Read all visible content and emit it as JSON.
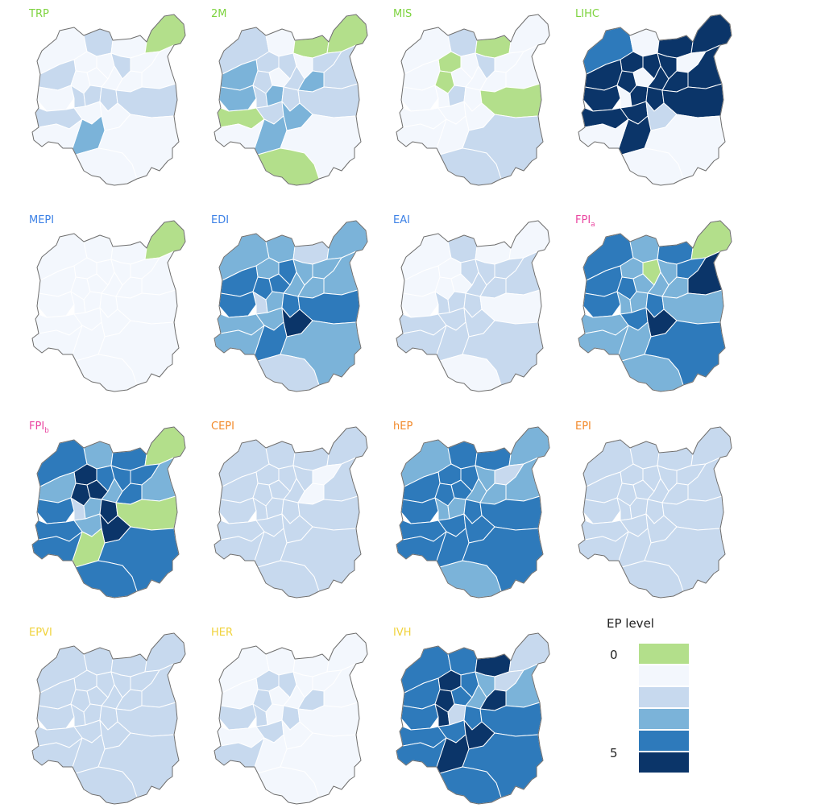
{
  "palette": {
    "level_0": "#b3df8b",
    "level_1": "#f3f7fd",
    "level_2": "#c7d9ee",
    "level_3": "#7bb3d9",
    "level_4": "#2e7abb",
    "level_5": "#0b3569"
  },
  "label_colors": {
    "green": "#7dd33e",
    "blue": "#3e82e6",
    "pink": "#ea47a1",
    "orange": "#f28a2b",
    "yellow": "#f0d23a"
  },
  "panels": [
    {
      "name": "TRP",
      "subscript": "",
      "label_color": "green",
      "levels": [
        1,
        2,
        1,
        1,
        0,
        2,
        1,
        1,
        2,
        1,
        1,
        1,
        1,
        2,
        2,
        2,
        1,
        1,
        2,
        2,
        1,
        1,
        3,
        1,
        1,
        1
      ]
    },
    {
      "name": "2M",
      "subscript": "",
      "label_color": "green",
      "levels": [
        2,
        1,
        0,
        2,
        0,
        3,
        2,
        2,
        1,
        2,
        1,
        2,
        3,
        2,
        3,
        2,
        3,
        2,
        0,
        2,
        2,
        3,
        3,
        1,
        1,
        0
      ]
    },
    {
      "name": "MIS",
      "subscript": "",
      "label_color": "green",
      "levels": [
        1,
        2,
        0,
        0,
        1,
        1,
        0,
        1,
        2,
        1,
        1,
        1,
        1,
        1,
        2,
        1,
        1,
        1,
        1,
        0,
        1,
        1,
        1,
        1,
        2,
        2
      ]
    },
    {
      "name": "LIHC",
      "subscript": "",
      "label_color": "green",
      "levels": [
        4,
        1,
        5,
        5,
        5,
        5,
        5,
        5,
        5,
        1,
        1,
        5,
        5,
        1,
        5,
        5,
        5,
        5,
        5,
        5,
        5,
        2,
        5,
        1,
        1,
        1
      ]
    },
    {
      "name": "MEPI",
      "subscript": "",
      "label_color": "blue",
      "levels": [
        1,
        1,
        1,
        1,
        0,
        1,
        1,
        1,
        1,
        1,
        1,
        1,
        1,
        1,
        1,
        1,
        1,
        1,
        1,
        1,
        1,
        1,
        1,
        1,
        1,
        1
      ]
    },
    {
      "name": "EDI",
      "subscript": "",
      "label_color": "blue",
      "levels": [
        3,
        3,
        2,
        3,
        3,
        4,
        4,
        4,
        3,
        3,
        4,
        3,
        4,
        2,
        3,
        4,
        3,
        3,
        3,
        4,
        3,
        5,
        4,
        3,
        3,
        2
      ]
    },
    {
      "name": "EAI",
      "subscript": "",
      "label_color": "blue",
      "levels": [
        1,
        2,
        1,
        1,
        1,
        1,
        1,
        2,
        2,
        2,
        1,
        2,
        1,
        2,
        2,
        2,
        2,
        2,
        2,
        1,
        2,
        2,
        2,
        2,
        2,
        1
      ]
    },
    {
      "name": "FPI",
      "subscript": "a",
      "label_color": "pink",
      "levels": [
        4,
        3,
        4,
        3,
        0,
        4,
        4,
        0,
        3,
        4,
        3,
        3,
        4,
        3,
        3,
        4,
        3,
        5,
        3,
        3,
        4,
        5,
        3,
        3,
        4,
        3
      ]
    },
    {
      "name": "FPI",
      "subscript": "b",
      "label_color": "pink",
      "levels": [
        4,
        3,
        4,
        5,
        0,
        3,
        5,
        4,
        4,
        4,
        5,
        3,
        4,
        2,
        3,
        5,
        4,
        3,
        4,
        0,
        3,
        5,
        0,
        4,
        4,
        4
      ]
    },
    {
      "name": "CEPI",
      "subscript": "",
      "label_color": "orange",
      "levels": [
        2,
        2,
        2,
        2,
        2,
        2,
        2,
        2,
        2,
        1,
        2,
        2,
        2,
        2,
        2,
        2,
        1,
        2,
        2,
        2,
        2,
        2,
        2,
        2,
        2,
        2
      ]
    },
    {
      "name": "hEP",
      "subscript": "",
      "label_color": "orange",
      "levels": [
        3,
        4,
        4,
        4,
        3,
        4,
        4,
        4,
        3,
        2,
        4,
        3,
        4,
        3,
        3,
        4,
        3,
        3,
        4,
        4,
        4,
        4,
        4,
        4,
        4,
        3
      ]
    },
    {
      "name": "EPI",
      "subscript": "",
      "label_color": "orange",
      "levels": [
        2,
        2,
        2,
        2,
        2,
        2,
        2,
        2,
        2,
        2,
        2,
        2,
        2,
        2,
        2,
        2,
        2,
        2,
        2,
        2,
        2,
        2,
        2,
        2,
        2,
        2
      ]
    },
    {
      "name": "EPVI",
      "subscript": "",
      "label_color": "yellow",
      "levels": [
        2,
        2,
        2,
        2,
        2,
        2,
        2,
        2,
        2,
        2,
        2,
        2,
        2,
        2,
        2,
        2,
        2,
        2,
        2,
        2,
        2,
        2,
        2,
        2,
        2,
        2
      ]
    },
    {
      "name": "HER",
      "subscript": "",
      "label_color": "yellow",
      "levels": [
        1,
        1,
        1,
        2,
        1,
        1,
        2,
        2,
        1,
        1,
        1,
        1,
        2,
        2,
        1,
        2,
        2,
        1,
        1,
        1,
        2,
        1,
        1,
        2,
        1,
        1
      ]
    },
    {
      "name": "IVH",
      "subscript": "",
      "label_color": "yellow",
      "levels": [
        4,
        4,
        5,
        5,
        2,
        4,
        5,
        4,
        3,
        2,
        4,
        3,
        4,
        5,
        2,
        4,
        5,
        3,
        4,
        4,
        4,
        5,
        5,
        4,
        4,
        4
      ]
    }
  ],
  "legend": {
    "title": "EP level",
    "min_label": "0",
    "max_label": "5",
    "levels": [
      0,
      1,
      2,
      3,
      4,
      5
    ]
  }
}
